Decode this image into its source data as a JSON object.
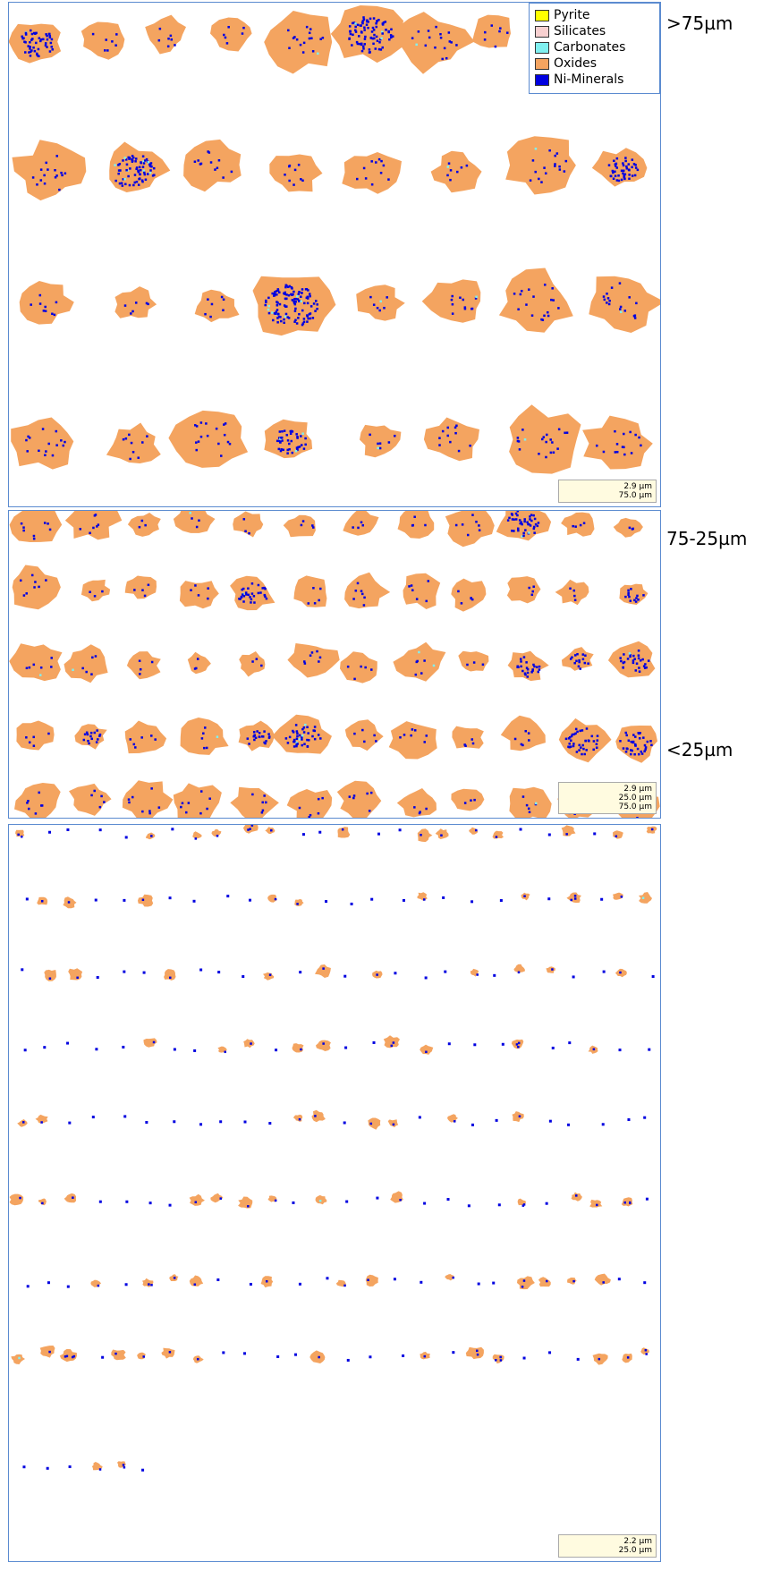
{
  "legend": [
    {
      "name": "Pyrite",
      "color": "#ffff00"
    },
    {
      "name": "Silicates",
      "color": "#f8d0d0"
    },
    {
      "name": "Carbonates",
      "color": "#80f0f0"
    },
    {
      "name": "Oxides",
      "color": "#f4a460"
    },
    {
      "name": "Ni-Minerals",
      "color": "#0000e0"
    }
  ],
  "panels": [
    {
      "label": ">75µm",
      "scale_bar": [
        "2.9 µm",
        "75.0 µm"
      ]
    },
    {
      "label": "75-25µm",
      "scale_bar": [
        "2.9 µm",
        "25.0 µm",
        "75.0 µm"
      ]
    },
    {
      "label": "<25µm",
      "scale_bar": [
        "2.2 µm",
        "25.0 µm"
      ]
    }
  ]
}
